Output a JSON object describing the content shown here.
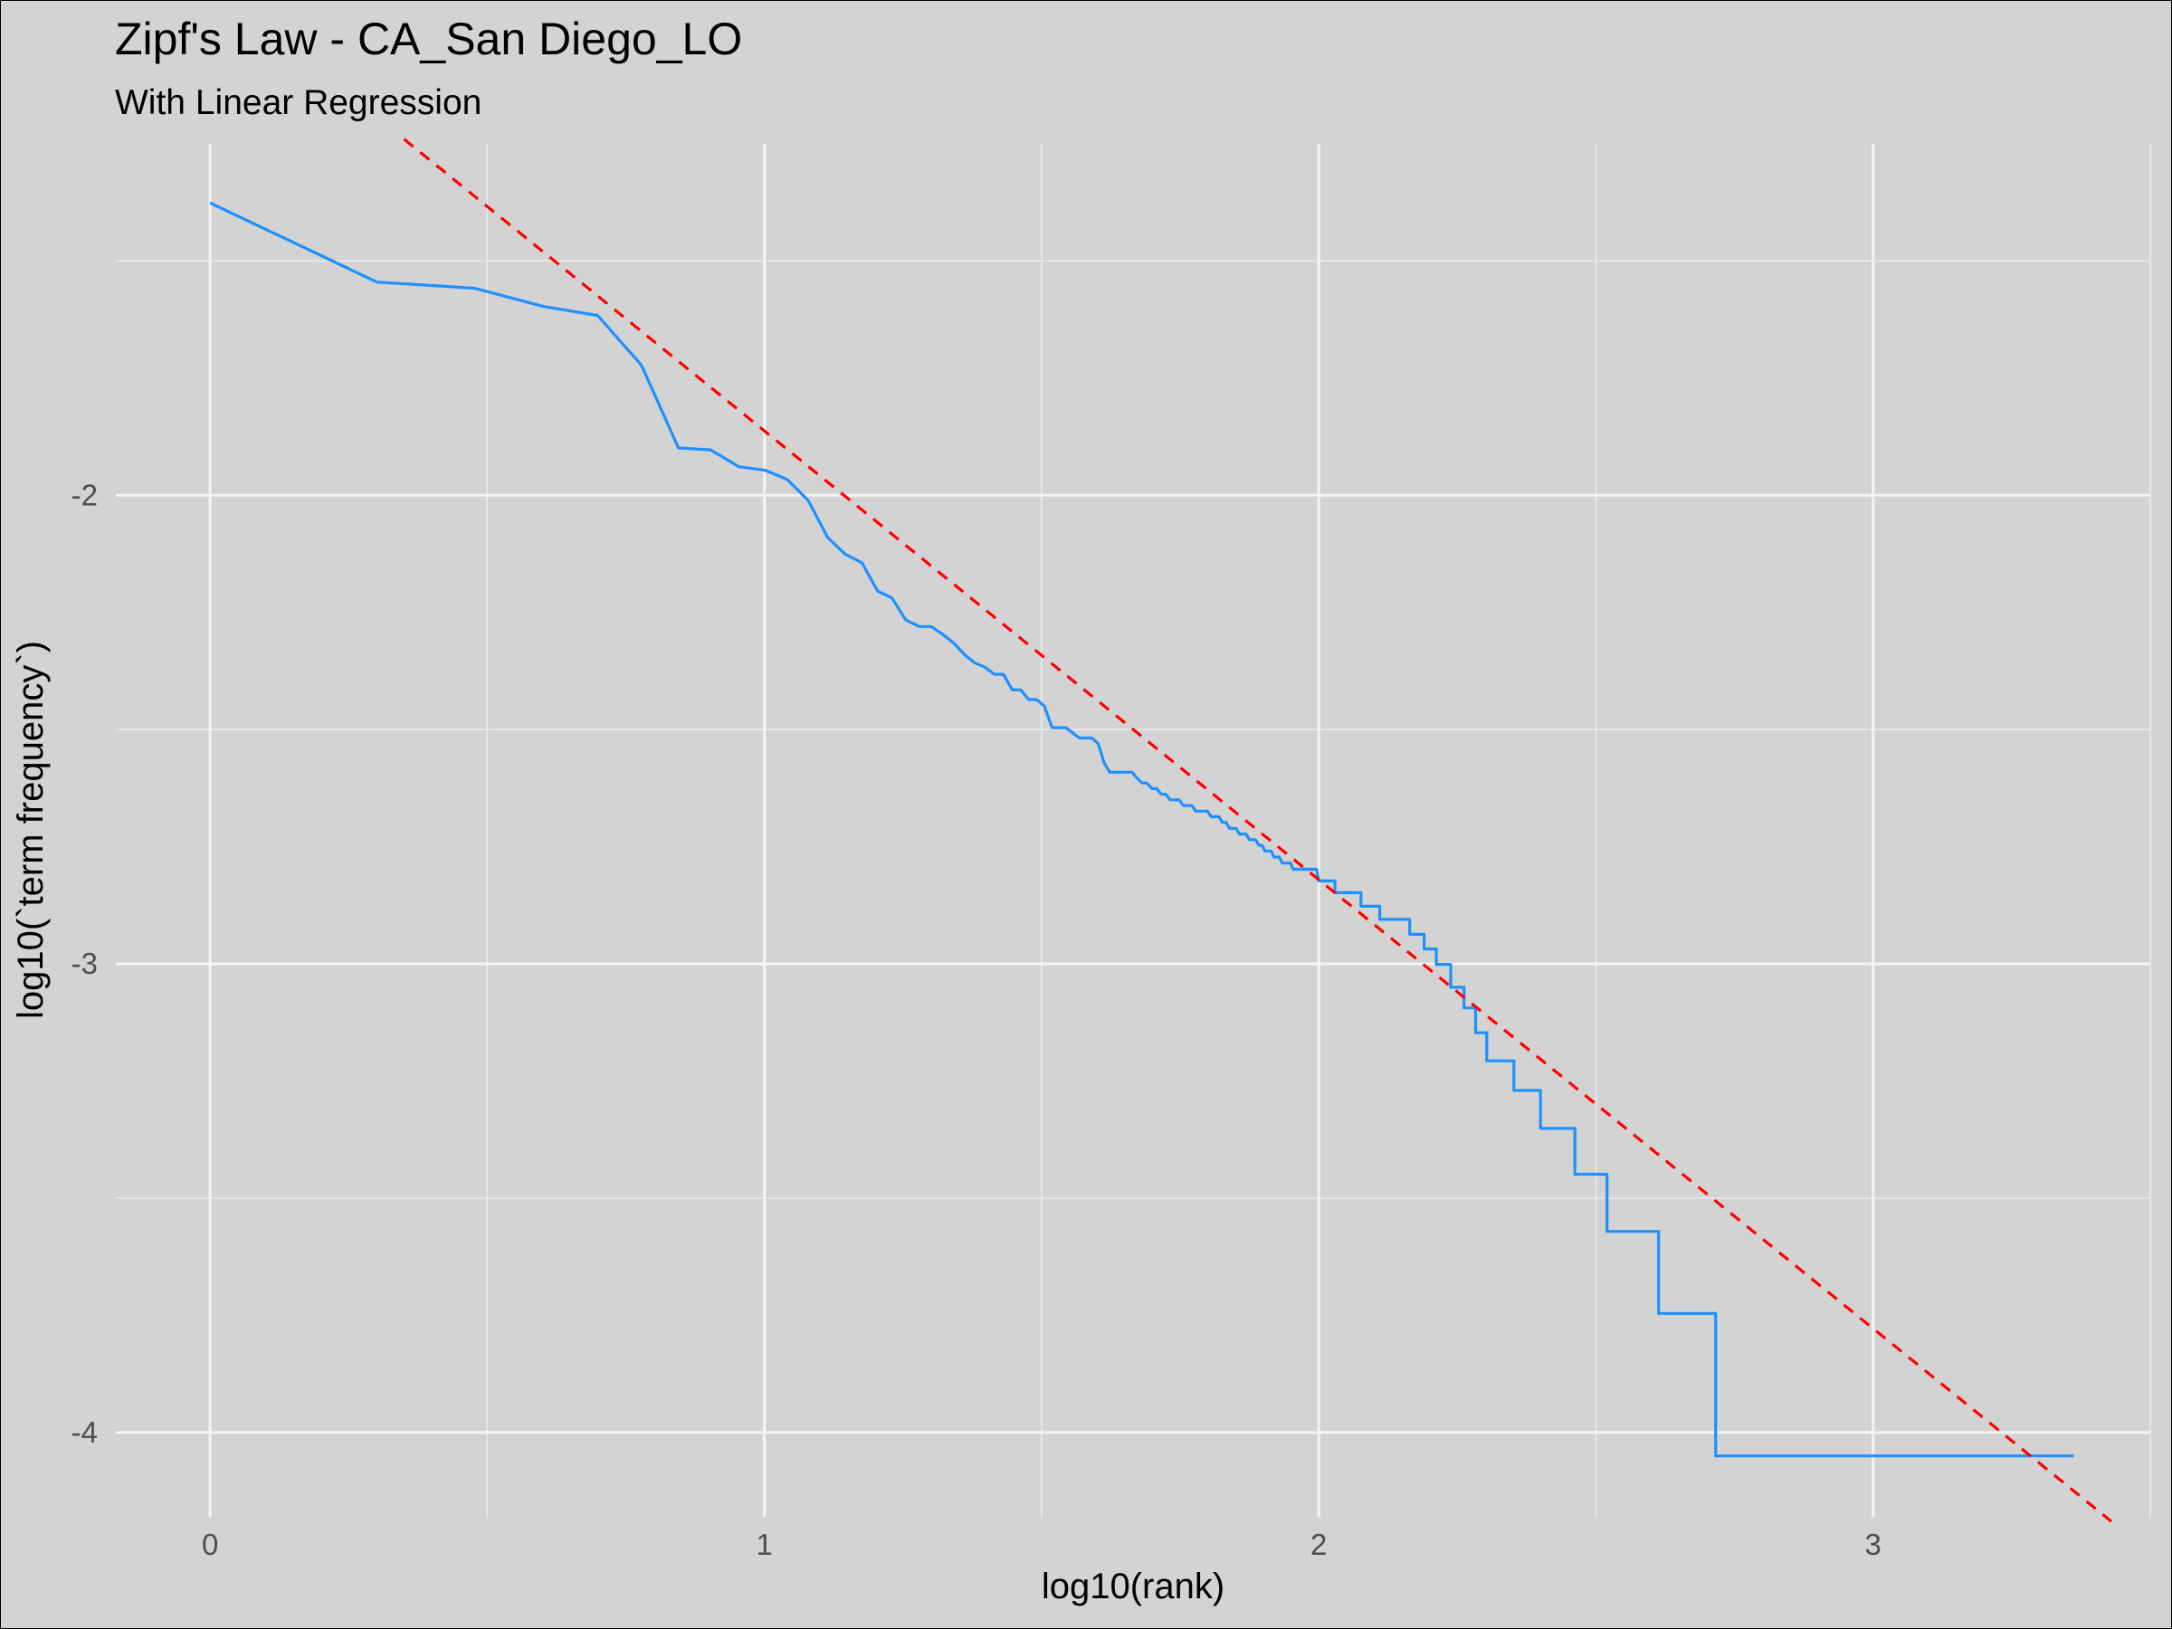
{
  "chart_data": {
    "type": "line",
    "title": "Zipf's Law -  CA_San Diego_LO",
    "subtitle": "With Linear Regression",
    "xlabel": "log10(rank)",
    "ylabel": "log10(`term frequency`)",
    "xlim": [
      -0.17,
      3.5
    ],
    "ylim": [
      -4.18,
      -1.25
    ],
    "x_ticks": [
      0,
      1,
      2,
      3
    ],
    "x_tick_labels": [
      "0",
      "1",
      "2",
      "3"
    ],
    "y_ticks": [
      -2,
      -3,
      -4
    ],
    "y_tick_labels": [
      "-2",
      "-3",
      "-4"
    ],
    "grid": true,
    "series": [
      {
        "kind": "line",
        "color": "#1e90ff",
        "style": "solid",
        "x": [
          0,
          0.301,
          0.477,
          0.602,
          0.699,
          0.778,
          0.845,
          0.903,
          0.954,
          1.0,
          1.041,
          1.079,
          1.114,
          1.146,
          1.176,
          1.204,
          1.23,
          1.255,
          1.279,
          1.301,
          1.322,
          1.342,
          1.362,
          1.38,
          1.398,
          1.415,
          1.431,
          1.447,
          1.462,
          1.477,
          1.491,
          1.505,
          1.519,
          1.531,
          1.544,
          1.556,
          1.568,
          1.58,
          1.591,
          1.602,
          1.613,
          1.623,
          1.633,
          1.643,
          1.653,
          1.663,
          1.672,
          1.681,
          1.69,
          1.699,
          1.708,
          1.716,
          1.724,
          1.732,
          1.74,
          1.748,
          1.756,
          1.763,
          1.771,
          1.778,
          1.785,
          1.792,
          1.799,
          1.806,
          1.813,
          1.82,
          1.826,
          1.833,
          1.839,
          1.845,
          1.851,
          1.857,
          1.863,
          1.869,
          1.875,
          1.881,
          1.886,
          1.892,
          1.898,
          1.903,
          1.908,
          1.914,
          1.919,
          1.924,
          1.929,
          1.934,
          1.94,
          1.945,
          1.949,
          1.954,
          1.959,
          1.964,
          1.968,
          1.973,
          1.978,
          1.982,
          1.987,
          1.991,
          1.996,
          2.0,
          2.029,
          2.076,
          2.11,
          2.164,
          2.19,
          2.212,
          2.238,
          2.262,
          2.283,
          2.303,
          2.352,
          2.4,
          2.462,
          2.52,
          2.613,
          2.716,
          2.84,
          3.017,
          3.362
        ],
        "y": [
          -1.376,
          -1.545,
          -1.558,
          -1.597,
          -1.616,
          -1.722,
          -1.899,
          -1.903,
          -1.939,
          -1.946,
          -1.966,
          -2.011,
          -2.09,
          -2.126,
          -2.144,
          -2.204,
          -2.219,
          -2.266,
          -2.28,
          -2.28,
          -2.297,
          -2.316,
          -2.341,
          -2.358,
          -2.367,
          -2.382,
          -2.382,
          -2.415,
          -2.415,
          -2.436,
          -2.436,
          -2.45,
          -2.496,
          -2.496,
          -2.496,
          -2.507,
          -2.518,
          -2.518,
          -2.518,
          -2.53,
          -2.571,
          -2.591,
          -2.591,
          -2.591,
          -2.591,
          -2.591,
          -2.603,
          -2.614,
          -2.614,
          -2.626,
          -2.626,
          -2.638,
          -2.638,
          -2.65,
          -2.65,
          -2.65,
          -2.662,
          -2.662,
          -2.662,
          -2.674,
          -2.674,
          -2.674,
          -2.674,
          -2.686,
          -2.686,
          -2.686,
          -2.698,
          -2.698,
          -2.711,
          -2.711,
          -2.711,
          -2.723,
          -2.723,
          -2.723,
          -2.735,
          -2.735,
          -2.735,
          -2.747,
          -2.747,
          -2.759,
          -2.759,
          -2.759,
          -2.772,
          -2.772,
          -2.772,
          -2.785,
          -2.785,
          -2.785,
          -2.785,
          -2.798,
          -2.798,
          -2.798,
          -2.798,
          -2.798,
          -2.798,
          -2.798,
          -2.798,
          -2.798,
          -2.798,
          -2.823,
          -2.848,
          -2.877,
          -2.905,
          -2.937,
          -2.968,
          -3.001,
          -3.05,
          -3.094,
          -3.147,
          -3.207,
          -3.27,
          -3.351,
          -3.449,
          -3.571,
          -3.746,
          -4.05,
          -4.05,
          -4.05,
          -4.05
        ]
      },
      {
        "kind": "regression",
        "color": "#ff0000",
        "style": "dashed",
        "x": [
          0.35,
          3.43
        ],
        "y": [
          -1.24,
          -4.19
        ]
      }
    ]
  }
}
